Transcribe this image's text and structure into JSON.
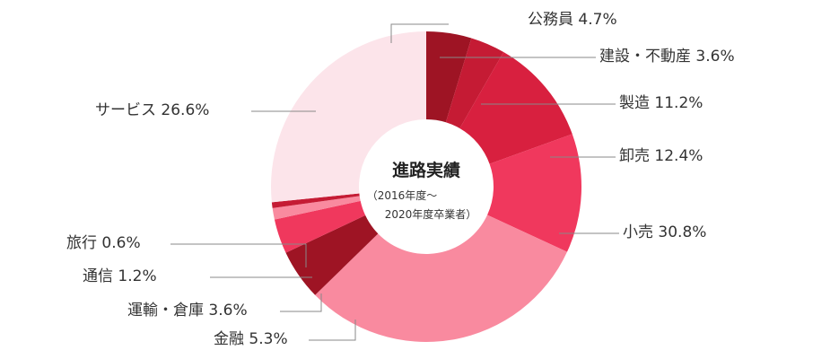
{
  "chart_data": {
    "type": "pie",
    "title": "進路実績",
    "subtitle_line1": "（2016年度〜",
    "subtitle_line2": "2020年度卒業者）",
    "slices": [
      {
        "name": "公務員",
        "value": 4.7,
        "label": "公務員 4.7%",
        "color": "#9e1424"
      },
      {
        "name": "建設・不動産",
        "value": 3.6,
        "label": "建設・不動産 3.6%",
        "color": "#c51b34"
      },
      {
        "name": "製造",
        "value": 11.2,
        "label": "製造 11.2%",
        "color": "#d8203f"
      },
      {
        "name": "卸売",
        "value": 12.4,
        "label": "卸売 12.4%",
        "color": "#f0385d"
      },
      {
        "name": "小売",
        "value": 30.8,
        "label": "小売 30.8%",
        "color": "#f98a9f"
      },
      {
        "name": "金融",
        "value": 5.3,
        "label": "金融 5.3%",
        "color": "#9e1424"
      },
      {
        "name": "運輸・倉庫",
        "value": 3.6,
        "label": "運輸・倉庫 3.6%",
        "color": "#f0385d"
      },
      {
        "name": "通信",
        "value": 1.2,
        "label": "通信 1.2%",
        "color": "#f98a9f"
      },
      {
        "name": "旅行",
        "value": 0.6,
        "label": "旅行 0.6%",
        "color": "#c51b34"
      },
      {
        "name": "サービス",
        "value": 26.6,
        "label": "サービス 26.6%",
        "color": "#fce4ea"
      }
    ]
  }
}
